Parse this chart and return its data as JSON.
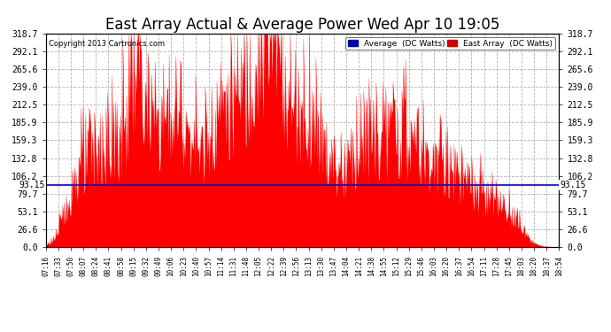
{
  "title": "East Array Actual & Average Power Wed Apr 10 19:05",
  "copyright": "Copyright 2013 Cartronics.com",
  "average_value": 93.15,
  "average_label": "93.15",
  "y_max": 318.7,
  "y_min": 0.0,
  "yticks": [
    0.0,
    26.6,
    53.1,
    79.7,
    106.2,
    132.8,
    159.3,
    185.9,
    212.5,
    239.0,
    265.6,
    292.1,
    318.7
  ],
  "background_color": "#ffffff",
  "fill_color": "#ff0000",
  "line_color": "#ff0000",
  "average_line_color": "#0000cc",
  "grid_color": "#aaaaaa",
  "title_fontsize": 12,
  "legend_avg_label": "Average  (DC Watts)",
  "legend_east_label": "East Array  (DC Watts)",
  "x_labels": [
    "07:16",
    "07:33",
    "07:50",
    "08:07",
    "08:24",
    "08:41",
    "08:58",
    "09:15",
    "09:32",
    "09:49",
    "10:06",
    "10:23",
    "10:40",
    "10:57",
    "11:14",
    "11:31",
    "11:48",
    "12:05",
    "12:22",
    "12:39",
    "12:56",
    "13:13",
    "13:30",
    "13:47",
    "14:04",
    "14:21",
    "14:38",
    "14:55",
    "15:12",
    "15:29",
    "15:46",
    "16:03",
    "16:20",
    "16:37",
    "16:54",
    "17:11",
    "17:28",
    "17:45",
    "18:03",
    "18:20",
    "18:37",
    "18:54"
  ]
}
